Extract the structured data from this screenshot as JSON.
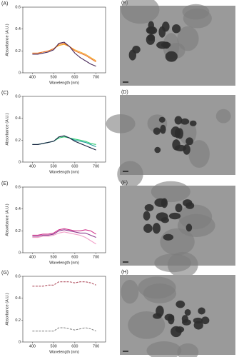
{
  "chart_data": [
    {
      "type": "line",
      "panel": "(A)",
      "y_label": "Absorbance (A.U.)",
      "x_label": "Wavelength (nm)",
      "x": [
        400,
        425,
        450,
        475,
        500,
        525,
        550,
        575,
        600,
        625,
        650,
        675,
        700
      ],
      "series": [
        {
          "color": "#f5a623",
          "values": [
            0.18,
            0.18,
            0.19,
            0.2,
            0.22,
            0.25,
            0.26,
            0.24,
            0.21,
            0.19,
            0.17,
            0.14,
            0.11
          ]
        },
        {
          "color": "#e8702a",
          "values": [
            0.18,
            0.18,
            0.19,
            0.2,
            0.22,
            0.26,
            0.27,
            0.24,
            0.2,
            0.18,
            0.16,
            0.13,
            0.1
          ]
        },
        {
          "color": "#4a2a5a",
          "values": [
            0.17,
            0.17,
            0.18,
            0.19,
            0.21,
            0.27,
            0.28,
            0.24,
            0.18,
            0.14,
            0.11,
            0.08,
            0.06
          ]
        }
      ],
      "xlim": [
        355,
        745
      ],
      "ylim": [
        0,
        0.6
      ],
      "xticks": [
        400,
        500,
        600,
        700
      ],
      "yticks": [
        0,
        0.2,
        0.4,
        0.6
      ]
    },
    {
      "type": "line",
      "panel": "(C)",
      "y_label": "Absorbance (A.U.)",
      "x_label": "Wavelength (nm)",
      "x": [
        400,
        425,
        450,
        475,
        500,
        525,
        550,
        575,
        600,
        625,
        650,
        675,
        700
      ],
      "series": [
        {
          "color": "#2ecc71",
          "values": [
            0.16,
            0.16,
            0.17,
            0.18,
            0.19,
            0.22,
            0.23,
            0.22,
            0.21,
            0.2,
            0.19,
            0.17,
            0.16
          ]
        },
        {
          "color": "#1a9a9a",
          "values": [
            0.16,
            0.16,
            0.17,
            0.18,
            0.19,
            0.23,
            0.24,
            0.22,
            0.2,
            0.19,
            0.18,
            0.16,
            0.14
          ]
        },
        {
          "color": "#1c2340",
          "values": [
            0.16,
            0.16,
            0.17,
            0.18,
            0.19,
            0.23,
            0.24,
            0.22,
            0.19,
            0.17,
            0.15,
            0.13,
            0.11
          ]
        }
      ],
      "xlim": [
        355,
        745
      ],
      "ylim": [
        0,
        0.6
      ],
      "xticks": [
        400,
        500,
        600,
        700
      ],
      "yticks": [
        0,
        0.2,
        0.4,
        0.6
      ]
    },
    {
      "type": "line",
      "panel": "(E)",
      "y_label": "Absorbance (A.U.)",
      "x_label": "Wavelength (nm)",
      "x": [
        400,
        425,
        450,
        475,
        500,
        525,
        550,
        575,
        600,
        625,
        650,
        675,
        700
      ],
      "series": [
        {
          "color": "#f2a0c8",
          "values": [
            0.14,
            0.14,
            0.15,
            0.15,
            0.16,
            0.18,
            0.19,
            0.18,
            0.17,
            0.16,
            0.14,
            0.11,
            0.08
          ]
        },
        {
          "color": "#8e3a8e",
          "values": [
            0.15,
            0.15,
            0.16,
            0.16,
            0.17,
            0.2,
            0.21,
            0.2,
            0.19,
            0.18,
            0.18,
            0.16,
            0.14
          ]
        },
        {
          "color": "#d0308a",
          "values": [
            0.16,
            0.16,
            0.17,
            0.17,
            0.18,
            0.21,
            0.22,
            0.21,
            0.2,
            0.2,
            0.21,
            0.2,
            0.17
          ]
        }
      ],
      "xlim": [
        355,
        745
      ],
      "ylim": [
        0,
        0.6
      ],
      "xticks": [
        400,
        500,
        600,
        700
      ],
      "yticks": [
        0,
        0.2,
        0.4,
        0.6
      ]
    },
    {
      "type": "line",
      "panel": "(G)",
      "y_label": "Absorbance (A.U.)",
      "x_label": "Wavelength (nm)",
      "line_style": "dashed",
      "x": [
        400,
        425,
        450,
        475,
        500,
        525,
        550,
        575,
        600,
        625,
        650,
        675,
        700
      ],
      "series": [
        {
          "color": "#b05060",
          "values": [
            0.51,
            0.51,
            0.51,
            0.52,
            0.52,
            0.55,
            0.55,
            0.55,
            0.54,
            0.55,
            0.55,
            0.54,
            0.52
          ]
        },
        {
          "color": "#888888",
          "values": [
            0.1,
            0.1,
            0.1,
            0.1,
            0.1,
            0.13,
            0.13,
            0.12,
            0.11,
            0.12,
            0.13,
            0.12,
            0.1
          ]
        }
      ],
      "xlim": [
        355,
        745
      ],
      "ylim": [
        0,
        0.6
      ],
      "xticks": [
        400,
        500,
        600,
        700
      ],
      "yticks": [
        0,
        0.2,
        0.4,
        0.6
      ]
    }
  ],
  "images": [
    {
      "label": "(B)"
    },
    {
      "label": "(D)"
    },
    {
      "label": "(F)"
    },
    {
      "label": "(H)"
    }
  ]
}
